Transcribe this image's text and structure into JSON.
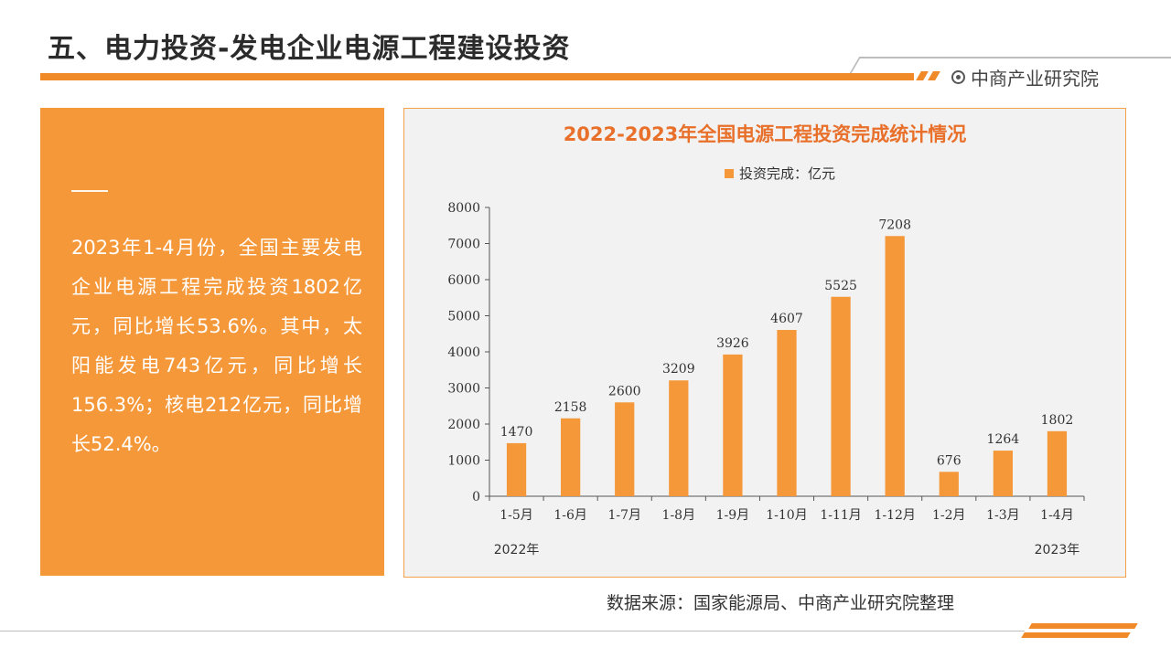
{
  "header": {
    "title": "五、电力投资-发电企业电源工程建设投资",
    "brand": "中商产业研究院"
  },
  "summary": {
    "text": "2023年1-4月份，全国主要发电企业电源工程完成投资1802亿元，同比增长53.6%。其中，太阳能发电743亿元，同比增长156.3%；核电212亿元，同比增长52.4%。"
  },
  "chart_data": {
    "type": "bar",
    "title": "2022-2023年全国电源工程投资完成统计情况",
    "categories": [
      "1-5月",
      "1-6月",
      "1-7月",
      "1-8月",
      "1-9月",
      "1-10月",
      "1-11月",
      "1-12月",
      "1-2月",
      "1-3月",
      "1-4月"
    ],
    "series": [
      {
        "name": "投资完成：亿元",
        "values": [
          1470,
          2158,
          2600,
          3209,
          3926,
          4607,
          5525,
          7208,
          676,
          1264,
          1802
        ]
      }
    ],
    "year_labels": [
      {
        "label": "2022年",
        "category_index": 0
      },
      {
        "label": "2023年",
        "category_index": 10
      }
    ],
    "ylim": [
      0,
      8000
    ],
    "yticks": [
      0,
      1000,
      2000,
      3000,
      4000,
      5000,
      6000,
      7000,
      8000
    ],
    "legend_position": "top-center",
    "grid": false,
    "color": "#f5983a"
  },
  "footer": {
    "source": "数据来源：国家能源局、中商产业研究院整理"
  }
}
